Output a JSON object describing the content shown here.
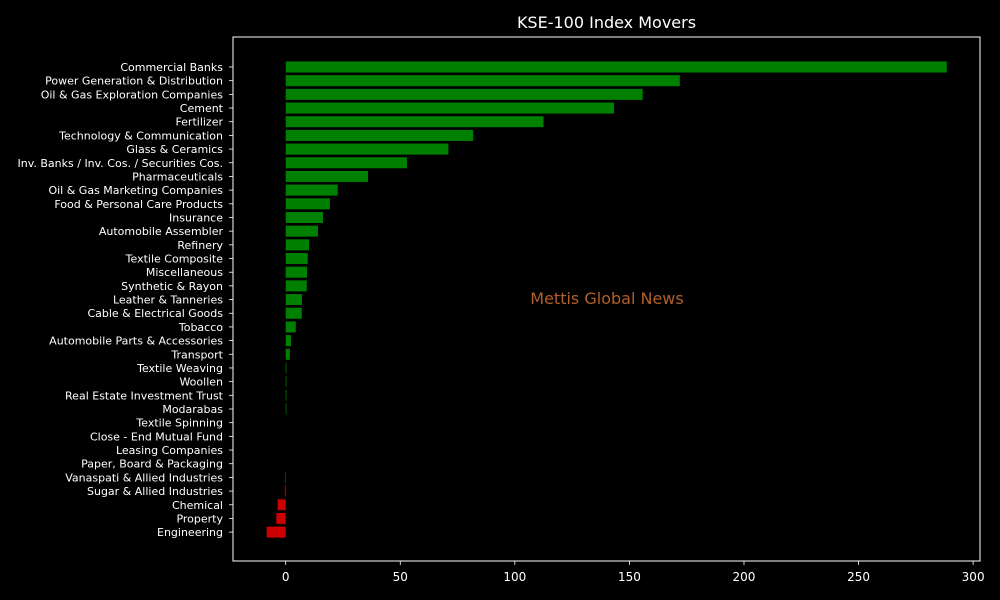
{
  "chart_data": {
    "type": "bar",
    "orientation": "horizontal",
    "title": "KSE-100 Index Movers",
    "watermark": "Mettis Global News",
    "xlim": [
      -23,
      303
    ],
    "x_ticks": [
      0,
      50,
      100,
      150,
      200,
      250,
      300
    ],
    "categories": [
      "Commercial Banks",
      "Power Generation & Distribution",
      "Oil & Gas Exploration Companies",
      "Cement",
      "Fertilizer",
      "Technology & Communication",
      "Glass & Ceramics",
      "Inv. Banks / Inv. Cos. / Securities Cos.",
      "Pharmaceuticals",
      "Oil & Gas Marketing Companies",
      "Food & Personal Care Products",
      "Insurance",
      "Automobile Assembler",
      "Refinery",
      "Textile Composite",
      "Miscellaneous",
      "Synthetic & Rayon",
      "Leather & Tanneries",
      "Cable & Electrical Goods",
      "Tobacco",
      "Automobile Parts & Accessories",
      "Transport",
      "Textile Weaving",
      "Woollen",
      "Real Estate Investment Trust",
      "Modarabas",
      "Textile Spinning",
      "Close - End Mutual Fund",
      "Leasing Companies",
      "Paper, Board & Packaging",
      "Vanaspati & Allied Industries",
      "Sugar & Allied Industries",
      "Chemical",
      "Property",
      "Engineering"
    ],
    "values": [
      288.5,
      172.0,
      155.8,
      143.3,
      112.5,
      81.8,
      71.0,
      52.9,
      35.9,
      22.7,
      19.3,
      16.3,
      14.1,
      10.2,
      9.6,
      9.3,
      9.2,
      7.1,
      7.0,
      4.4,
      2.3,
      1.8,
      0.3,
      0.3,
      0.3,
      0.3,
      0.0,
      0.0,
      0.0,
      0.0,
      -0.3,
      -0.4,
      -3.5,
      -4.1,
      -8.3
    ],
    "colors": {
      "positive": "#008000",
      "negative": "#cc0000",
      "axes": "#ffffff",
      "background": "#000000",
      "watermark": "#b0602a"
    },
    "grid": false,
    "legend": "none"
  }
}
